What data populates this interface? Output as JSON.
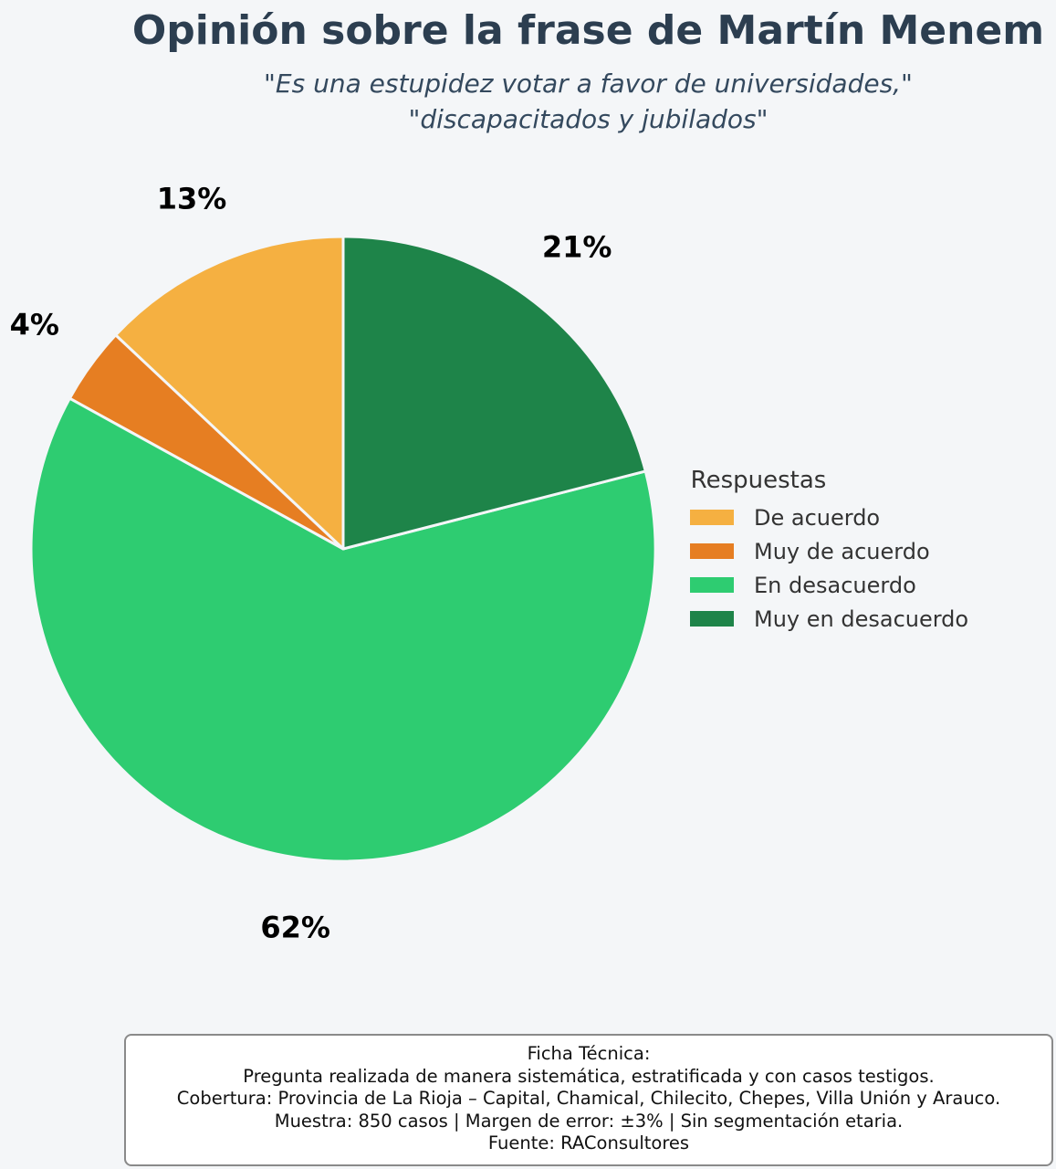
{
  "chart_data": {
    "type": "pie",
    "title": "Opinión sobre la frase de Martín Menem",
    "subtitle": [
      "\"Es una estupidez votar a favor de universidades,\"",
      "\"discapacitados y jubilados\""
    ],
    "legend_title": "Respuestas",
    "legend_position": "right",
    "start_angle_deg": 90,
    "direction": "counterclockwise",
    "slices": [
      {
        "label": "De acuerdo",
        "value": 13,
        "value_label": "13%",
        "color": "#f5b041"
      },
      {
        "label": "Muy de acuerdo",
        "value": 4,
        "value_label": "4%",
        "color": "#e67e22"
      },
      {
        "label": "En desacuerdo",
        "value": 62,
        "value_label": "62%",
        "color": "#2ecc71"
      },
      {
        "label": "Muy en desacuerdo",
        "value": 21,
        "value_label": "21%",
        "color": "#1e8449"
      }
    ]
  },
  "ficha": {
    "heading": "Ficha Técnica:",
    "lines": [
      "Pregunta realizada de manera sistemática, estratificada y con casos testigos.",
      "Cobertura: Provincia de La Rioja – Capital, Chamical, Chilecito, Chepes, Villa Unión y Arauco.",
      "Muestra: 850 casos | Margen de error: ±3% | Sin segmentación etaria.",
      "Fuente: RAConsultores"
    ]
  }
}
